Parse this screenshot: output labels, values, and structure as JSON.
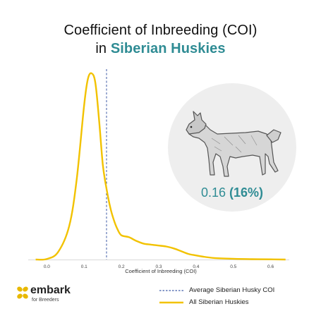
{
  "title_line1": "Coefficient of Inbreeding (COI)",
  "title_line2_prefix": "in ",
  "title_line2_accent": "Siberian Huskies",
  "callout_value": "0.16",
  "callout_percent": "(16%)",
  "brand": {
    "name": "embark",
    "tagline": "for Breeders",
    "accent_color": "#e8b800"
  },
  "chart_data": {
    "type": "line",
    "xlabel": "Coefficient of Inbreeding (COI)",
    "ylabel": "",
    "xlim": [
      -0.05,
      0.65
    ],
    "x_ticks": [
      "0.0",
      "0.1",
      "0.2",
      "0.3",
      "0.4",
      "0.5",
      "0.6"
    ],
    "x_tick_values": [
      0.0,
      0.1,
      0.2,
      0.3,
      0.4,
      0.5,
      0.6
    ],
    "grid": false,
    "legend_position": "bottom-right",
    "average_line": {
      "name": "Average Siberian Husky COI",
      "x": 0.16,
      "color": "#3d5aa6",
      "style": "dashed"
    },
    "series": [
      {
        "name": "All Siberian Huskies",
        "color": "#f2c200",
        "x": [
          -0.03,
          0.0,
          0.03,
          0.06,
          0.08,
          0.1,
          0.11,
          0.12,
          0.13,
          0.14,
          0.15,
          0.16,
          0.17,
          0.18,
          0.19,
          0.2,
          0.22,
          0.24,
          0.26,
          0.28,
          0.3,
          0.32,
          0.34,
          0.36,
          0.38,
          0.4,
          0.42,
          0.45,
          0.5,
          0.55,
          0.6,
          0.64
        ],
        "y": [
          0.0,
          0.003,
          0.04,
          0.18,
          0.43,
          0.83,
          0.97,
          1.0,
          0.95,
          0.75,
          0.51,
          0.38,
          0.28,
          0.21,
          0.16,
          0.13,
          0.12,
          0.1,
          0.085,
          0.08,
          0.075,
          0.07,
          0.06,
          0.045,
          0.03,
          0.022,
          0.015,
          0.008,
          0.004,
          0.002,
          0.001,
          0.0
        ]
      }
    ]
  }
}
